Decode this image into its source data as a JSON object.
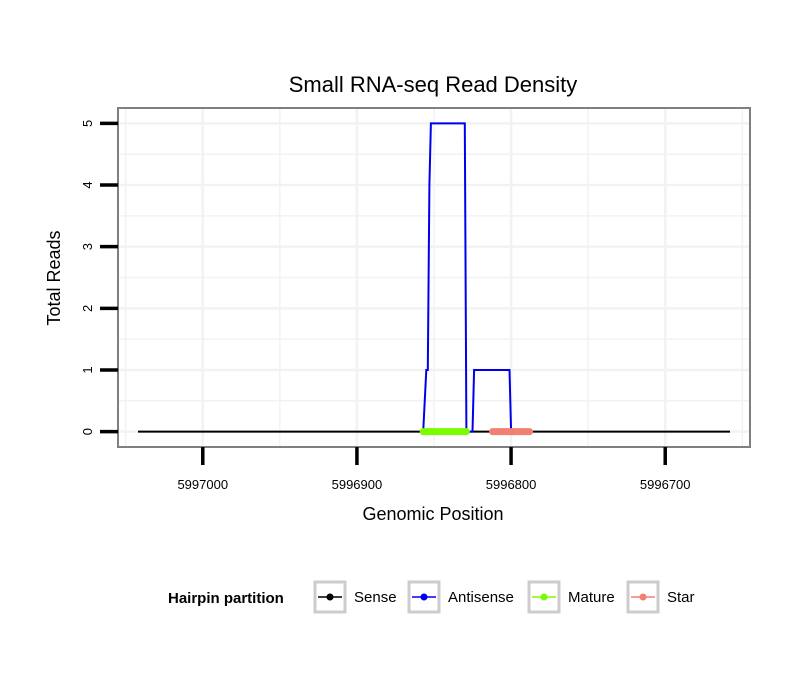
{
  "colors": {
    "sense": "#000000",
    "antisense": "#0000ee",
    "mature": "#7cfc00",
    "star": "#f08070",
    "panel_border": "#7f7f7f",
    "grid": "#f2f2f2"
  },
  "chart_data": {
    "type": "line",
    "title": "Small RNA-seq Read Density",
    "xlabel": "Genomic Position",
    "ylabel": "Total Reads",
    "x_reversed": true,
    "xlim": [
      5997055,
      5996645
    ],
    "ylim": [
      -0.25,
      5.25
    ],
    "xticks": [
      5997000,
      5996900,
      5996800,
      5996700
    ],
    "xtick_labels": [
      "5997000",
      "5996900",
      "5996800",
      "5996700"
    ],
    "yticks": [
      0,
      1,
      2,
      3,
      4,
      5
    ],
    "ytick_labels": [
      "0",
      "1",
      "2",
      "3",
      "4",
      "5"
    ],
    "grid": true,
    "legend_position": "bottom",
    "legend_title": "Hairpin partition",
    "series": [
      {
        "name": "Sense",
        "color_key": "sense",
        "kind": "line",
        "x": [
          5997042,
          5996658
        ],
        "y": [
          0,
          0
        ]
      },
      {
        "name": "Antisense",
        "color_key": "antisense",
        "kind": "line",
        "x": [
          5996857,
          5996855,
          5996854,
          5996853,
          5996852,
          5996851,
          5996850,
          5996830,
          5996829,
          5996825,
          5996824,
          5996801,
          5996800
        ],
        "y": [
          0,
          1,
          1,
          4,
          5,
          5,
          5,
          5,
          0,
          0,
          1,
          1,
          0
        ]
      },
      {
        "name": "Mature",
        "color_key": "mature",
        "kind": "segment",
        "x": [
          5996857,
          5996829
        ],
        "y": [
          0,
          0
        ]
      },
      {
        "name": "Star",
        "color_key": "star",
        "kind": "segment",
        "x": [
          5996812,
          5996788
        ],
        "y": [
          0,
          0
        ]
      }
    ]
  }
}
